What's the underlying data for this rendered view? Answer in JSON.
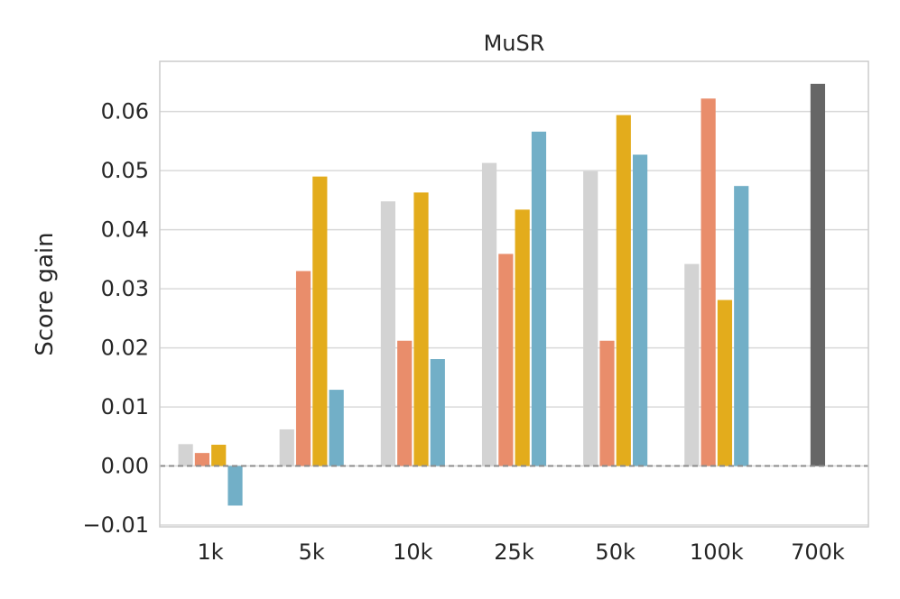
{
  "chart_data": {
    "type": "bar",
    "title": "MuSR",
    "xlabel": "",
    "ylabel": "Score gain",
    "categories": [
      "1k",
      "5k",
      "10k",
      "25k",
      "50k",
      "100k",
      "700k"
    ],
    "y_ticks": [
      "−0.01",
      "0.00",
      "0.01",
      "0.02",
      "0.03",
      "0.04",
      "0.05",
      "0.06"
    ],
    "y_tick_values": [
      -0.01,
      0.0,
      0.01,
      0.02,
      0.03,
      0.04,
      0.05,
      0.06
    ],
    "ylim": [
      -0.0103,
      0.0685
    ],
    "grid": true,
    "reference_line": 0.0,
    "series": [
      {
        "color": "#d3d3d3",
        "values": [
          0.0037,
          0.0062,
          0.0448,
          0.0513,
          0.0499,
          0.0342,
          null
        ]
      },
      {
        "color": "#e98d6b",
        "values": [
          0.0022,
          0.033,
          0.0212,
          0.0359,
          0.0212,
          0.0622,
          null
        ]
      },
      {
        "color": "#e3ac1c",
        "values": [
          0.0036,
          0.049,
          0.0463,
          0.0434,
          0.0594,
          0.0281,
          null
        ]
      },
      {
        "color": "#72afc7",
        "values": [
          -0.0067,
          0.0129,
          0.0181,
          0.0566,
          0.0527,
          0.0474,
          null
        ]
      },
      {
        "color": "#666666",
        "values": [
          null,
          null,
          null,
          null,
          null,
          null,
          0.0647
        ]
      }
    ]
  }
}
